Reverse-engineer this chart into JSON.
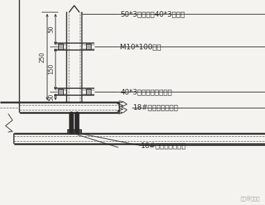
{
  "bg_color": "#f5f3ef",
  "line_color": "#2a2a2a",
  "dashed_color": "#666666",
  "labels": {
    "label1": "50*3方管插入40*3方管内",
    "label2": "M10*100螺栓",
    "label3": "40*3方管焊接在主梁上",
    "label4": "18#工字钢（主梁）",
    "label5": "16#工字钢（次梁）"
  },
  "dim_labels": {
    "dim_50a": "50",
    "dim_150": "150",
    "dim_50b": "50",
    "dim_250": "250"
  },
  "watermark": "头条@鲁柏强"
}
